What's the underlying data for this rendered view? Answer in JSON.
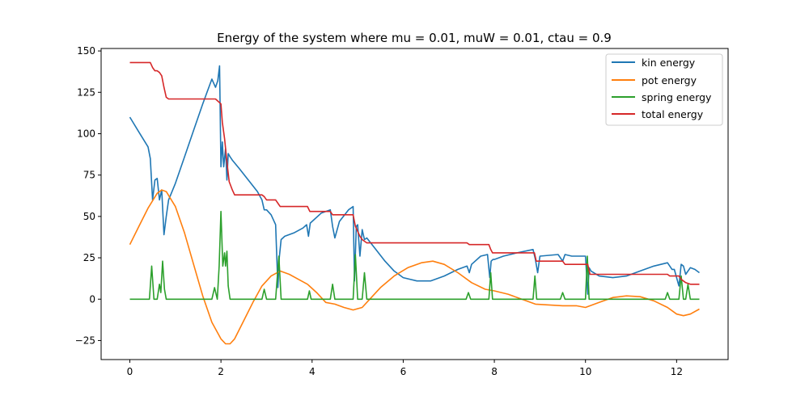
{
  "chart_data": {
    "type": "line",
    "title": "Energy of the system where mu = 0.01, muW = 0.01, ctau = 0.9",
    "xlabel": "",
    "ylabel": "",
    "xlim": [
      -0.63,
      13.13
    ],
    "ylim": [
      -36.5,
      151.5
    ],
    "xticks": [
      0,
      2,
      4,
      6,
      8,
      10,
      12
    ],
    "yticks": [
      -25,
      0,
      25,
      50,
      75,
      100,
      125,
      150
    ],
    "grid": false,
    "legend_position": "upper right",
    "series": [
      {
        "name": "kin energy",
        "color": "#1f77b4",
        "x": [
          0,
          0.2,
          0.4,
          0.45,
          0.5,
          0.55,
          0.6,
          0.65,
          0.7,
          0.75,
          0.8,
          0.85,
          1.0,
          1.2,
          1.4,
          1.6,
          1.8,
          1.88,
          1.93,
          1.97,
          2.0,
          2.03,
          2.06,
          2.1,
          2.13,
          2.16,
          2.2,
          2.25,
          2.4,
          2.6,
          2.8,
          2.9,
          2.95,
          3.0,
          3.1,
          3.2,
          3.25,
          3.28,
          3.32,
          3.4,
          3.6,
          3.8,
          3.88,
          3.92,
          3.96,
          4.2,
          4.4,
          4.45,
          4.5,
          4.6,
          4.8,
          4.9,
          4.93,
          4.97,
          5.0,
          5.05,
          5.1,
          5.15,
          5.2,
          5.4,
          5.6,
          5.8,
          6.0,
          6.3,
          6.6,
          6.9,
          7.2,
          7.4,
          7.45,
          7.5,
          7.7,
          7.85,
          7.9,
          7.93,
          7.97,
          8.0,
          8.2,
          8.5,
          8.85,
          8.9,
          8.95,
          9.0,
          9.4,
          9.5,
          9.55,
          9.7,
          10.0,
          10.05,
          10.08,
          10.12,
          10.3,
          10.6,
          10.9,
          11.2,
          11.5,
          11.8,
          11.9,
          11.95,
          12.05,
          12.1,
          12.15,
          12.2,
          12.3,
          12.4,
          12.5
        ],
        "y": [
          110,
          101,
          92,
          85,
          60,
          72,
          73,
          60,
          66,
          39,
          50,
          60,
          70,
          86,
          102,
          118,
          133,
          128,
          132,
          141,
          80,
          95,
          80,
          91,
          72,
          88,
          86,
          84,
          79,
          72,
          65,
          60,
          54,
          54,
          51,
          45,
          7,
          25,
          36,
          38,
          40,
          43,
          45,
          38,
          46,
          52,
          54,
          44,
          37,
          47,
          54,
          56,
          11,
          44,
          45,
          26,
          42,
          36,
          37,
          30,
          23,
          17,
          13,
          11,
          11,
          14,
          18,
          20,
          16,
          21,
          26,
          27,
          13,
          23,
          24,
          24,
          26,
          28,
          30,
          24,
          16,
          26,
          27,
          23,
          27,
          26,
          26,
          3,
          19,
          17,
          14,
          13,
          14,
          17,
          20,
          22,
          18,
          18,
          8,
          21,
          20,
          15,
          19,
          18,
          16
        ],
        "note": "clipped (spikes approximated)"
      },
      {
        "name": "pot energy",
        "color": "#ff7f0e",
        "x": [
          0,
          0.2,
          0.4,
          0.6,
          0.7,
          0.8,
          1.0,
          1.2,
          1.4,
          1.6,
          1.8,
          2.0,
          2.1,
          2.2,
          2.3,
          2.5,
          2.7,
          2.9,
          3.1,
          3.3,
          3.5,
          3.7,
          3.9,
          4.1,
          4.3,
          4.5,
          4.7,
          4.9,
          5.1,
          5.3,
          5.5,
          5.8,
          6.1,
          6.4,
          6.65,
          6.9,
          7.2,
          7.5,
          7.8,
          8.0,
          8.3,
          8.6,
          8.9,
          9.2,
          9.5,
          9.8,
          10.0,
          10.3,
          10.6,
          10.9,
          11.2,
          11.5,
          11.8,
          12.0,
          12.15,
          12.3,
          12.5
        ],
        "y": [
          33,
          44,
          55,
          64,
          66,
          65,
          56,
          40,
          21,
          2,
          -14,
          -24,
          -27,
          -27,
          -24,
          -13,
          -2,
          8,
          14,
          17,
          15,
          12,
          9,
          4,
          -2,
          -3,
          -5,
          -6.5,
          -5,
          1,
          7,
          14,
          19,
          22,
          23,
          21,
          16,
          10,
          6,
          5,
          3,
          0,
          -3,
          -3.5,
          -4,
          -4,
          -5,
          -2,
          1,
          2,
          1.5,
          -1,
          -5,
          -9,
          -10,
          -9,
          -6
        ]
      },
      {
        "name": "spring energy",
        "color": "#2ca02c",
        "x": [
          0,
          0.43,
          0.48,
          0.53,
          0.6,
          0.65,
          0.68,
          0.72,
          0.76,
          0.8,
          0.85,
          1.8,
          1.86,
          1.92,
          1.96,
          2.0,
          2.04,
          2.08,
          2.1,
          2.13,
          2.16,
          2.2,
          2.24,
          2.3,
          2.9,
          2.95,
          3.0,
          3.2,
          3.27,
          3.32,
          3.9,
          3.94,
          3.98,
          4.4,
          4.45,
          4.5,
          4.9,
          4.95,
          5.0,
          5.1,
          5.15,
          5.2,
          7.38,
          7.43,
          7.48,
          7.88,
          7.92,
          7.96,
          8.85,
          8.89,
          8.93,
          9.45,
          9.5,
          9.55,
          10.0,
          10.04,
          10.08,
          11.75,
          11.8,
          11.85,
          12.05,
          12.1,
          12.15,
          12.2,
          12.25,
          12.3,
          12.5
        ],
        "y": [
          0,
          0,
          20,
          0,
          0,
          9,
          4,
          23,
          6,
          0,
          0,
          0,
          7,
          0,
          20,
          53,
          20,
          28,
          20,
          29,
          8,
          0,
          0,
          0,
          0,
          6,
          0,
          0,
          26,
          0,
          0,
          5,
          0,
          0,
          9,
          0,
          0,
          27,
          0,
          0,
          16,
          0,
          0,
          4,
          0,
          0,
          16,
          0,
          0,
          14,
          0,
          0,
          4,
          0,
          0,
          26,
          0,
          0,
          4,
          0,
          0,
          14,
          0,
          0,
          9,
          0,
          0
        ]
      },
      {
        "name": "total energy",
        "color": "#d62728",
        "x": [
          0,
          0.45,
          0.5,
          0.55,
          0.6,
          0.65,
          0.7,
          0.75,
          0.8,
          0.85,
          1.88,
          2.0,
          2.03,
          2.08,
          2.13,
          2.18,
          2.25,
          2.3,
          2.9,
          2.95,
          3.0,
          3.2,
          3.25,
          3.3,
          3.4,
          3.9,
          3.95,
          4.4,
          4.45,
          4.9,
          4.95,
          5.0,
          5.05,
          5.1,
          5.2,
          7.4,
          7.45,
          7.88,
          7.92,
          7.96,
          8.88,
          8.92,
          9.5,
          9.55,
          10.05,
          10.1,
          11.8,
          11.85,
          12.05,
          12.1,
          12.2,
          12.3,
          12.5
        ],
        "y": [
          143,
          143,
          140,
          138,
          138,
          137,
          135,
          128,
          122,
          121,
          121,
          118,
          107,
          97,
          83,
          71,
          66,
          63,
          63,
          62,
          60,
          60,
          58,
          56,
          56,
          56,
          53,
          53,
          51,
          51,
          44,
          41,
          38,
          36,
          34,
          34,
          33,
          33,
          30,
          28,
          28,
          23,
          23,
          21,
          21,
          15,
          15,
          14,
          14,
          12,
          10,
          9,
          9
        ]
      }
    ]
  },
  "legend": {
    "items": [
      {
        "label": "kin energy",
        "color": "#1f77b4"
      },
      {
        "label": "pot energy",
        "color": "#ff7f0e"
      },
      {
        "label": "spring energy",
        "color": "#2ca02c"
      },
      {
        "label": "total energy",
        "color": "#d62728"
      }
    ]
  }
}
